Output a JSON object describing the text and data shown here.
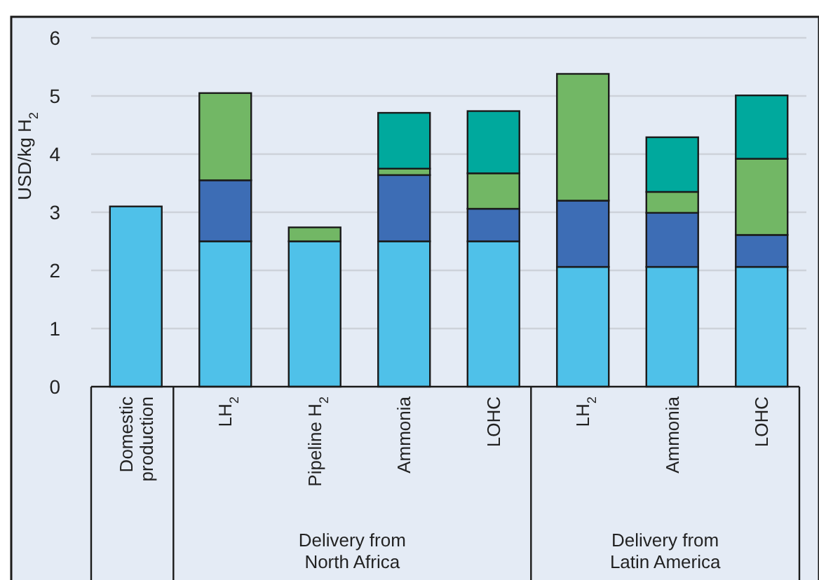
{
  "chart_data": {
    "type": "bar",
    "stacked": true,
    "ylabel": "USD/kg H$_{2}$",
    "categories": [
      "Domestic production",
      "LH$_{2}$",
      "Pipeline H$_{2}$",
      "Ammonia",
      "LOHC",
      "LH$_{2}$",
      "Ammonia",
      "LOHC"
    ],
    "series": [
      {
        "color": "#4fc1e9",
        "values": [
          3.1,
          2.5,
          2.5,
          2.5,
          2.5,
          2.06,
          2.06,
          2.06
        ]
      },
      {
        "color": "#3d6db5",
        "values": [
          null,
          1.05,
          null,
          1.14,
          0.56,
          1.14,
          0.93,
          0.55
        ]
      },
      {
        "color": "#72b765",
        "values": [
          null,
          1.5,
          0.24,
          0.11,
          0.61,
          2.18,
          0.36,
          1.31
        ]
      },
      {
        "color": "#00a99d",
        "values": [
          null,
          null,
          null,
          0.96,
          1.07,
          null,
          0.94,
          1.09
        ]
      }
    ],
    "annotations": [
      "Delivery from North Africa",
      "Delivery from Latin America"
    ],
    "ylim": [
      0,
      6
    ],
    "yticks": [
      0,
      1,
      2,
      3,
      4,
      5,
      6
    ],
    "grid": "y"
  }
}
